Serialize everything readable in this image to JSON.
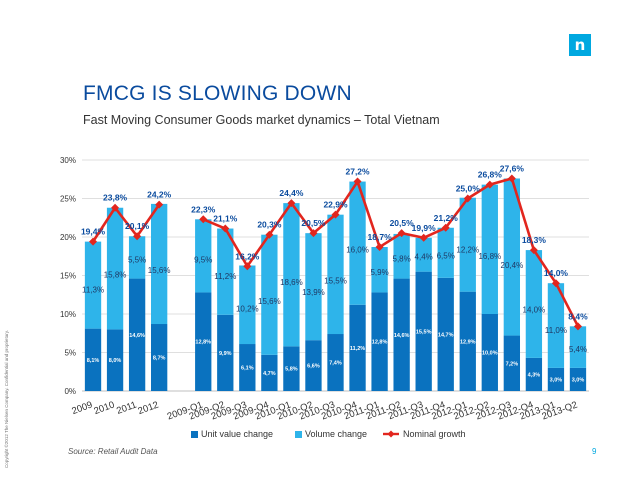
{
  "header": {
    "logo_glyph": "n",
    "title": "FMCG IS SLOWING DOWN",
    "subtitle": "Fast Moving Consumer Goods market dynamics – Total Vietnam"
  },
  "footer": {
    "source": "Source: Retail Audit Data",
    "page_number": "9",
    "copyright": "Copyright ©2012 The Nielsen Company. Confidential and proprietary."
  },
  "colors": {
    "unit_value": "#0a72bf",
    "volume": "#2eb4ea",
    "nominal": "#e2261e",
    "title": "#0a4b9e",
    "value_label": "#0a4b9e",
    "grid": "#bfbfbf"
  },
  "chart_data": {
    "type": "bar",
    "stacked": true,
    "title": "",
    "xlabel": "",
    "ylabel": "",
    "ylim": [
      0,
      30
    ],
    "y_ticks": [
      "0%",
      "5%",
      "10%",
      "15%",
      "20%",
      "25%",
      "30%"
    ],
    "grid": true,
    "legend_position": "bottom",
    "categories": [
      "2009",
      "2010",
      "2011",
      "2012",
      "",
      "2009-Q1",
      "2009-Q2",
      "2009-Q3",
      "2009-Q4",
      "2010-Q1",
      "2010-Q2",
      "2010-Q3",
      "2010-Q4",
      "2011-Q1",
      "2011-Q2",
      "2011-Q3",
      "2011-Q4",
      "2012-Q1",
      "2012-Q2",
      "2012-Q3",
      "2012-Q4",
      "2013-Q1",
      "2013-Q2"
    ],
    "series": [
      {
        "name": "Unit value change",
        "values": [
          8.1,
          8.0,
          14.6,
          8.7,
          null,
          12.8,
          9.9,
          6.1,
          4.7,
          5.8,
          6.6,
          7.4,
          11.2,
          12.8,
          14.6,
          15.5,
          14.7,
          12.9,
          10.0,
          7.2,
          4.3,
          3.0,
          3.0
        ],
        "labels": [
          "8,1%",
          "8,0%",
          "14,6%",
          "8,7%",
          "",
          "12,8%",
          "9,9%",
          "6,1%",
          "4,7%",
          "5,8%",
          "6,6%",
          "7,4%",
          "11,2%",
          "12,8%",
          "14,6%",
          "15,5%",
          "14,7%",
          "12,9%",
          "10,0%",
          "7,2%",
          "4,3%",
          "3,0%",
          "3,0%"
        ]
      },
      {
        "name": "Volume change",
        "values": [
          11.3,
          15.8,
          5.5,
          15.6,
          null,
          9.5,
          11.2,
          10.2,
          15.6,
          18.6,
          13.9,
          15.5,
          16.0,
          5.9,
          5.8,
          4.4,
          6.5,
          12.2,
          16.8,
          20.4,
          14.0,
          11.0,
          5.4
        ],
        "labels": [
          "11,3%",
          "15,8%",
          "5,5%",
          "15,6%",
          "",
          "9,5%",
          "11,2%",
          "10,2%",
          "15,6%",
          "18,6%",
          "13,9%",
          "15,5%",
          "16,0%",
          "5,9%",
          "5,8%",
          "4,4%",
          "6,5%",
          "12,2%",
          "16,8%",
          "20,4%",
          "14,0%",
          "11,0%",
          "5,4%"
        ]
      },
      {
        "name": "Nominal growth",
        "type": "line",
        "values": [
          19.4,
          23.8,
          20.1,
          24.2,
          null,
          22.3,
          21.1,
          16.2,
          20.3,
          24.4,
          20.5,
          22.9,
          27.2,
          18.7,
          20.5,
          19.9,
          21.2,
          25.0,
          26.8,
          27.6,
          18.3,
          14.0,
          8.4
        ],
        "labels": [
          "19,4%",
          "23,8%",
          "20,1%",
          "24,2%",
          "",
          "22,3%",
          "21,1%",
          "16,2%",
          "20,3%",
          "24,4%",
          "20,5%",
          "22,9%",
          "27,2%",
          "18,7%",
          "20,5%",
          "19,9%",
          "21,2%",
          "25,0%",
          "26,8%",
          "27,6%",
          "18,3%",
          "14,0%",
          "8,4%"
        ]
      }
    ]
  }
}
